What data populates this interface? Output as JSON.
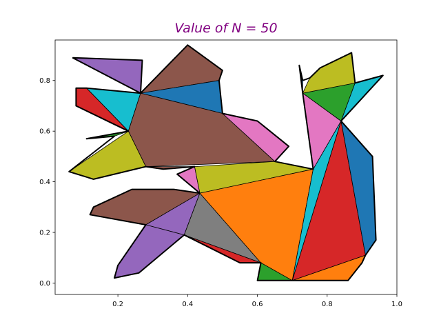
{
  "chart_data": {
    "type": "polygon",
    "title": "Value of N = 50",
    "title_color": "#800080",
    "xlabel": "",
    "ylabel": "",
    "xlim": [
      0.02,
      1.0
    ],
    "ylim": [
      -0.045,
      0.96
    ],
    "xticks": [
      0.2,
      0.4,
      0.6,
      0.8,
      1.0
    ],
    "xtick_labels": [
      "0.2",
      "0.4",
      "0.6",
      "0.8",
      "1.0"
    ],
    "yticks": [
      0.0,
      0.2,
      0.4,
      0.6,
      0.8
    ],
    "ytick_labels": [
      "0.0",
      "0.2",
      "0.4",
      "0.6",
      "0.8"
    ],
    "grid": false,
    "triangles": [
      {
        "color": "#9467bd",
        "points": [
          [
            0.07,
            0.89
          ],
          [
            0.27,
            0.88
          ],
          [
            0.265,
            0.75
          ]
        ]
      },
      {
        "color": "#8c564b",
        "points": [
          [
            0.265,
            0.75
          ],
          [
            0.4,
            0.94
          ],
          [
            0.5,
            0.84
          ],
          [
            0.49,
            0.8
          ]
        ]
      },
      {
        "color": "#1f77b4",
        "points": [
          [
            0.265,
            0.75
          ],
          [
            0.49,
            0.8
          ],
          [
            0.5,
            0.67
          ]
        ]
      },
      {
        "color": "#17becf",
        "points": [
          [
            0.11,
            0.77
          ],
          [
            0.265,
            0.75
          ],
          [
            0.23,
            0.6
          ]
        ]
      },
      {
        "color": "#d62728",
        "points": [
          [
            0.08,
            0.77
          ],
          [
            0.11,
            0.77
          ],
          [
            0.23,
            0.6
          ],
          [
            0.08,
            0.7
          ]
        ]
      },
      {
        "color": "#8c564b",
        "points": [
          [
            0.265,
            0.75
          ],
          [
            0.23,
            0.6
          ],
          [
            0.28,
            0.46
          ],
          [
            0.65,
            0.48
          ],
          [
            0.5,
            0.67
          ]
        ]
      },
      {
        "color": "#e377c2",
        "points": [
          [
            0.5,
            0.67
          ],
          [
            0.6,
            0.64
          ],
          [
            0.69,
            0.54
          ],
          [
            0.65,
            0.48
          ]
        ]
      },
      {
        "color": "#2ca02c",
        "points": [
          [
            0.11,
            0.57
          ],
          [
            0.23,
            0.6
          ],
          [
            0.19,
            0.58
          ]
        ]
      },
      {
        "color": "#bcbd22",
        "points": [
          [
            0.06,
            0.44
          ],
          [
            0.23,
            0.6
          ],
          [
            0.28,
            0.46
          ],
          [
            0.13,
            0.41
          ]
        ]
      },
      {
        "color": "#8c564b",
        "points": [
          [
            0.28,
            0.46
          ],
          [
            0.33,
            0.45
          ],
          [
            0.42,
            0.46
          ]
        ]
      },
      {
        "color": "#e377c2",
        "points": [
          [
            0.37,
            0.43
          ],
          [
            0.42,
            0.46
          ],
          [
            0.435,
            0.355
          ]
        ]
      },
      {
        "color": "#bcbd22",
        "points": [
          [
            0.42,
            0.46
          ],
          [
            0.65,
            0.48
          ],
          [
            0.76,
            0.45
          ],
          [
            0.435,
            0.355
          ]
        ]
      },
      {
        "color": "#8c564b",
        "points": [
          [
            0.12,
            0.27
          ],
          [
            0.13,
            0.3
          ],
          [
            0.24,
            0.37
          ],
          [
            0.36,
            0.37
          ],
          [
            0.435,
            0.355
          ],
          [
            0.28,
            0.23
          ]
        ]
      },
      {
        "color": "#9467bd",
        "points": [
          [
            0.28,
            0.23
          ],
          [
            0.435,
            0.355
          ],
          [
            0.39,
            0.19
          ]
        ]
      },
      {
        "color": "#9467bd",
        "points": [
          [
            0.19,
            0.02
          ],
          [
            0.2,
            0.07
          ],
          [
            0.28,
            0.23
          ],
          [
            0.39,
            0.19
          ],
          [
            0.26,
            0.04
          ]
        ]
      },
      {
        "color": "#7f7f7f",
        "points": [
          [
            0.435,
            0.355
          ],
          [
            0.39,
            0.19
          ],
          [
            0.61,
            0.08
          ]
        ]
      },
      {
        "color": "#d62728",
        "points": [
          [
            0.39,
            0.19
          ],
          [
            0.55,
            0.08
          ],
          [
            0.61,
            0.08
          ]
        ]
      },
      {
        "color": "#ff7f0e",
        "points": [
          [
            0.435,
            0.355
          ],
          [
            0.76,
            0.45
          ],
          [
            0.7,
            0.01
          ],
          [
            0.61,
            0.08
          ]
        ]
      },
      {
        "color": "#2ca02c",
        "points": [
          [
            0.6,
            0.01
          ],
          [
            0.61,
            0.08
          ],
          [
            0.7,
            0.01
          ]
        ]
      },
      {
        "color": "#17becf",
        "points": [
          [
            0.7,
            0.01
          ],
          [
            0.76,
            0.45
          ],
          [
            0.84,
            0.64
          ]
        ]
      },
      {
        "color": "#d62728",
        "points": [
          [
            0.7,
            0.01
          ],
          [
            0.84,
            0.64
          ],
          [
            0.91,
            0.11
          ]
        ]
      },
      {
        "color": "#ff7f0e",
        "points": [
          [
            0.7,
            0.01
          ],
          [
            0.91,
            0.11
          ],
          [
            0.9,
            0.08
          ],
          [
            0.86,
            0.01
          ]
        ]
      },
      {
        "color": "#1f77b4",
        "points": [
          [
            0.84,
            0.64
          ],
          [
            0.93,
            0.5
          ],
          [
            0.94,
            0.17
          ],
          [
            0.91,
            0.11
          ]
        ]
      },
      {
        "color": "#e377c2",
        "points": [
          [
            0.73,
            0.75
          ],
          [
            0.84,
            0.64
          ],
          [
            0.76,
            0.45
          ]
        ]
      },
      {
        "color": "#2ca02c",
        "points": [
          [
            0.73,
            0.75
          ],
          [
            0.88,
            0.79
          ],
          [
            0.84,
            0.64
          ]
        ]
      },
      {
        "color": "#17becf",
        "points": [
          [
            0.84,
            0.64
          ],
          [
            0.88,
            0.79
          ],
          [
            0.96,
            0.82
          ]
        ]
      },
      {
        "color": "#bcbd22",
        "points": [
          [
            0.73,
            0.75
          ],
          [
            0.75,
            0.81
          ],
          [
            0.78,
            0.85
          ],
          [
            0.87,
            0.91
          ],
          [
            0.88,
            0.79
          ]
        ]
      },
      {
        "color": "#1f77b4",
        "points": [
          [
            0.72,
            0.86
          ],
          [
            0.73,
            0.8
          ],
          [
            0.73,
            0.75
          ]
        ]
      }
    ],
    "outline": [
      [
        0.07,
        0.89
      ],
      [
        0.27,
        0.88
      ],
      [
        0.265,
        0.75
      ],
      [
        0.4,
        0.94
      ],
      [
        0.5,
        0.84
      ],
      [
        0.49,
        0.8
      ],
      [
        0.5,
        0.67
      ],
      [
        0.6,
        0.64
      ],
      [
        0.69,
        0.54
      ],
      [
        0.65,
        0.48
      ],
      [
        0.76,
        0.45
      ],
      [
        0.73,
        0.75
      ],
      [
        0.72,
        0.86
      ],
      [
        0.73,
        0.8
      ],
      [
        0.75,
        0.81
      ],
      [
        0.78,
        0.85
      ],
      [
        0.87,
        0.91
      ],
      [
        0.88,
        0.79
      ],
      [
        0.96,
        0.82
      ],
      [
        0.84,
        0.64
      ],
      [
        0.93,
        0.5
      ],
      [
        0.94,
        0.17
      ],
      [
        0.91,
        0.11
      ],
      [
        0.9,
        0.08
      ],
      [
        0.86,
        0.01
      ],
      [
        0.7,
        0.01
      ],
      [
        0.6,
        0.01
      ],
      [
        0.61,
        0.08
      ],
      [
        0.55,
        0.08
      ],
      [
        0.39,
        0.19
      ],
      [
        0.26,
        0.04
      ],
      [
        0.19,
        0.02
      ],
      [
        0.2,
        0.07
      ],
      [
        0.28,
        0.23
      ],
      [
        0.12,
        0.27
      ],
      [
        0.13,
        0.3
      ],
      [
        0.24,
        0.37
      ],
      [
        0.36,
        0.37
      ],
      [
        0.435,
        0.355
      ],
      [
        0.37,
        0.43
      ],
      [
        0.42,
        0.46
      ],
      [
        0.33,
        0.45
      ],
      [
        0.28,
        0.46
      ],
      [
        0.13,
        0.41
      ],
      [
        0.06,
        0.44
      ],
      [
        0.19,
        0.58
      ],
      [
        0.11,
        0.57
      ],
      [
        0.23,
        0.6
      ],
      [
        0.08,
        0.7
      ],
      [
        0.08,
        0.77
      ],
      [
        0.11,
        0.77
      ],
      [
        0.265,
        0.75
      ],
      [
        0.07,
        0.89
      ]
    ]
  }
}
